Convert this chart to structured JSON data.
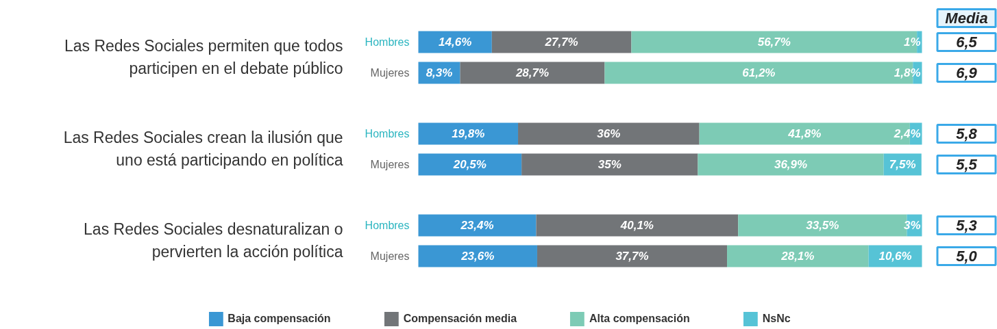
{
  "chart_data": {
    "type": "bar",
    "orientation": "horizontal",
    "stacked": true,
    "categories": [
      "Hombres",
      "Mujeres",
      "Hombres",
      "Mujeres",
      "Hombres",
      "Mujeres"
    ],
    "series": [
      {
        "name": "Baja compensación",
        "color": "#3a97d4",
        "values": [
          14.6,
          8.3,
          19.8,
          20.5,
          23.4,
          23.6
        ],
        "value_labels": [
          "14,6%",
          "8,3%",
          "19,8%",
          "20,5%",
          "23,4%",
          "23,6%"
        ]
      },
      {
        "name": "Compensación media",
        "color": "#727578",
        "values": [
          27.7,
          28.7,
          36,
          35,
          40.1,
          37.7
        ],
        "value_labels": [
          "27,7%",
          "28,7%",
          "36%",
          "35%",
          "40,1%",
          "37,7%"
        ]
      },
      {
        "name": "Alta compensación",
        "color": "#7dcbb5",
        "values": [
          56.7,
          61.2,
          41.8,
          36.9,
          33.5,
          28.1
        ],
        "value_labels": [
          "56,7%",
          "61,2%",
          "41,8%",
          "36,9%",
          "33,5%",
          "28,1%"
        ]
      },
      {
        "name": "NsNc",
        "color": "#56c3d6",
        "values": [
          1,
          1.8,
          2.4,
          7.5,
          3,
          10.6
        ],
        "value_labels": [
          "1%",
          "1,8%",
          "2,4%",
          "7,5%",
          "3%",
          "10,6%"
        ]
      }
    ],
    "xlim": [
      0,
      100
    ],
    "tick_labels": false,
    "grid": false,
    "legend": "bottom",
    "annotations": [
      "Las Redes Sociales permiten que todos\nparticipen en el debate público",
      "Las Redes Sociales crean la ilusión que\nuno está participando en política",
      "Las Redes Sociales desnaturalizan o\npervierten la acción política",
      "Media",
      "6,5",
      "6,9",
      "5,8",
      "5,5",
      "5,3",
      "5,0"
    ]
  }
}
